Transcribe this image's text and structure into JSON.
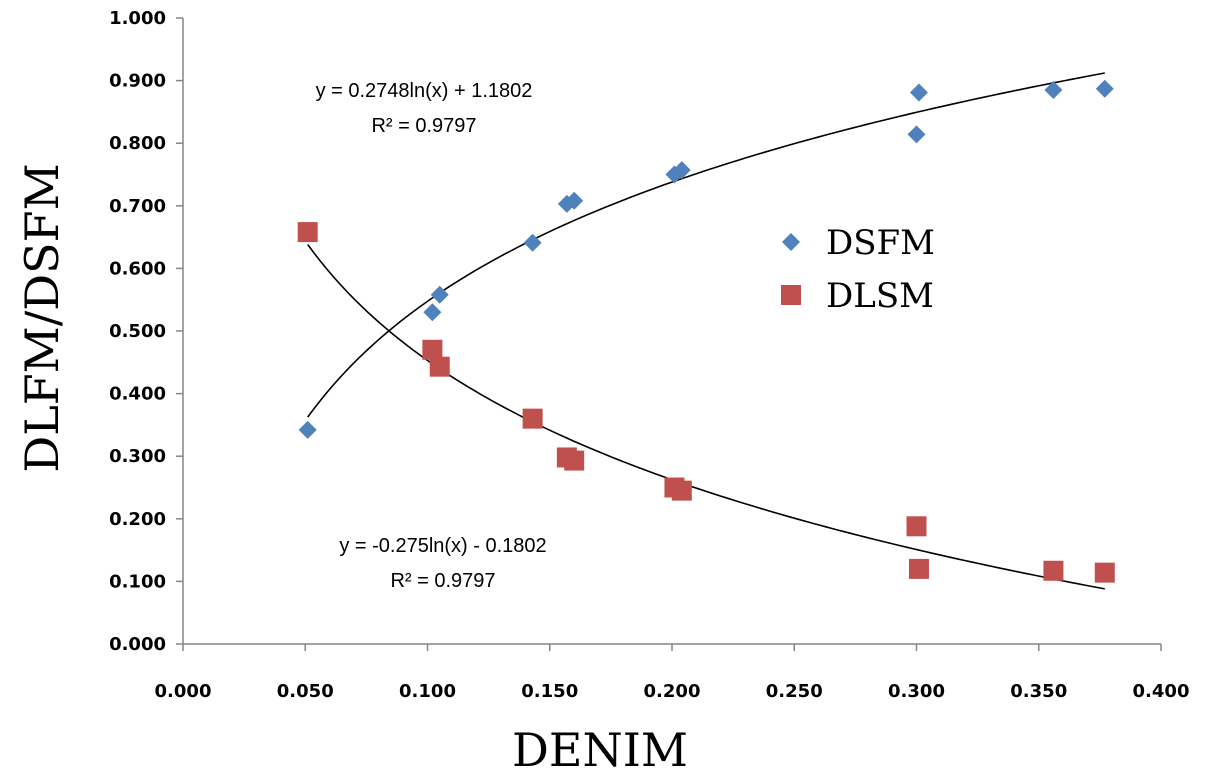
{
  "chart_data": {
    "type": "scatter",
    "title": "",
    "xlabel": "DENIM",
    "ylabel": "DLFM/DSFM",
    "xlim": [
      0,
      0.4
    ],
    "ylim": [
      0,
      1
    ],
    "x_ticks": [
      "0.000",
      "0.050",
      "0.100",
      "0.150",
      "0.200",
      "0.250",
      "0.300",
      "0.350",
      "0.400"
    ],
    "y_ticks": [
      "0.000",
      "0.100",
      "0.200",
      "0.300",
      "0.400",
      "0.500",
      "0.600",
      "0.700",
      "0.800",
      "0.900",
      "1.000"
    ],
    "grid": false,
    "legend_position": "center-right",
    "series": [
      {
        "name": "DSFM",
        "marker": "diamond",
        "color": "#4F81BD",
        "points": [
          {
            "x": 0.051,
            "y": 0.342
          },
          {
            "x": 0.102,
            "y": 0.53
          },
          {
            "x": 0.105,
            "y": 0.558
          },
          {
            "x": 0.143,
            "y": 0.641
          },
          {
            "x": 0.157,
            "y": 0.703
          },
          {
            "x": 0.16,
            "y": 0.708
          },
          {
            "x": 0.201,
            "y": 0.75
          },
          {
            "x": 0.204,
            "y": 0.757
          },
          {
            "x": 0.3,
            "y": 0.814
          },
          {
            "x": 0.301,
            "y": 0.881
          },
          {
            "x": 0.356,
            "y": 0.885
          },
          {
            "x": 0.377,
            "y": 0.887
          }
        ],
        "trendline": {
          "type": "logarithmic",
          "a": 0.2748,
          "b": 1.1802,
          "x_range": [
            0.051,
            0.377
          ],
          "equation": "y = 0.2748ln(x) + 1.1802",
          "r_squared": "R² = 0.9797"
        }
      },
      {
        "name": "DLSM",
        "marker": "square",
        "color": "#C0504D",
        "points": [
          {
            "x": 0.051,
            "y": 0.658
          },
          {
            "x": 0.102,
            "y": 0.47
          },
          {
            "x": 0.105,
            "y": 0.443
          },
          {
            "x": 0.143,
            "y": 0.36
          },
          {
            "x": 0.157,
            "y": 0.298
          },
          {
            "x": 0.16,
            "y": 0.293
          },
          {
            "x": 0.201,
            "y": 0.25
          },
          {
            "x": 0.204,
            "y": 0.245
          },
          {
            "x": 0.3,
            "y": 0.188
          },
          {
            "x": 0.301,
            "y": 0.12
          },
          {
            "x": 0.356,
            "y": 0.117
          },
          {
            "x": 0.377,
            "y": 0.114
          }
        ],
        "trendline": {
          "type": "logarithmic",
          "a": -0.275,
          "b": -0.1802,
          "x_range": [
            0.051,
            0.377
          ],
          "equation": "y = -0.275ln(x) - 0.1802",
          "r_squared": "R² = 0.9797"
        }
      }
    ]
  }
}
